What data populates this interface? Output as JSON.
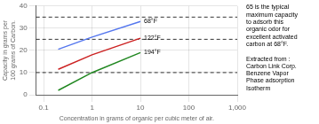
{
  "chart_data": {
    "type": "line",
    "xlabel": "Concentration in grams of organic per cubic meter of air.",
    "ylabel": "Capacity in grams per\n100 grams of Carbon.",
    "x": [
      0.2,
      1,
      10
    ],
    "series": [
      {
        "name": "68°F",
        "color": "#5577ee",
        "values": [
          20.5,
          26.0,
          33.0
        ]
      },
      {
        "name": "122°F",
        "color": "#cc2222",
        "values": [
          11.5,
          18.0,
          25.5
        ]
      },
      {
        "name": "194°F",
        "color": "#228822",
        "values": [
          2.0,
          10.0,
          19.0
        ]
      }
    ],
    "xlim": [
      0.07,
      1000
    ],
    "ylim": [
      0,
      40
    ],
    "xticks": [
      0.1,
      1,
      10,
      100,
      {
        "value": 1000,
        "label": "1,000"
      }
    ],
    "yticks": [
      0,
      10,
      20,
      30,
      40
    ],
    "log": "x",
    "grid": true,
    "hlines": [
      35,
      25,
      10
    ],
    "annotations": [
      "65 is the typical\nmaximum capacity\nto adsorb this\norganic odor for\nexcellent activated\ncarbon at 68°F.",
      "Extracted from :\nCarbon Link Corp.\nBenzene Vapor\nPhase adsorption\nIsotherm"
    ]
  }
}
